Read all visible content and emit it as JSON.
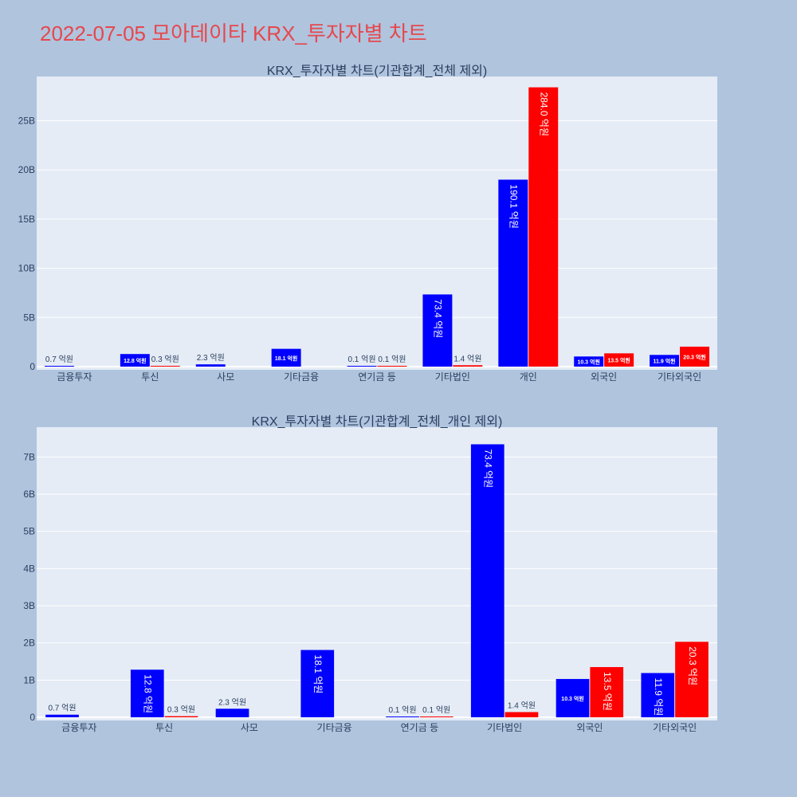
{
  "page": {
    "title": "2022-07-05 모아데이타 KRX_투자자별 차트",
    "background": "#b0c4de",
    "plot_background": "#e5ecf6",
    "title_color": "#e5484d"
  },
  "colors": {
    "buy": "#0000ff",
    "sell": "#ff0000"
  },
  "chart_data": [
    {
      "type": "bar",
      "title": "KRX_투자자별 차트(기관합계_전체 제외)",
      "categories": [
        "금융투자",
        "투신",
        "사모",
        "기타금융",
        "연기금 등",
        "기타법인",
        "개인",
        "외국인",
        "기타외국인"
      ],
      "series": [
        {
          "color": "#0000ff",
          "values": [
            70000000,
            1280000000,
            230000000,
            1810000000,
            10000000,
            7340000000,
            19010000000,
            1030000000,
            1190000000
          ],
          "labels": [
            "0.7 억원",
            "12.8 억원",
            "2.3 억원",
            "18.1 억원",
            "0.1 억원",
            "73.4 억원",
            "190.1 억원",
            "10.3 억원",
            "11.9 억원"
          ]
        },
        {
          "color": "#ff0000",
          "values": [
            0,
            30000000,
            0,
            0,
            10000000,
            140000000,
            28400000000,
            1350000000,
            2030000000
          ],
          "labels": [
            "",
            "0.3 억원",
            "",
            "",
            "0.1 억원",
            "1.4 억원",
            "284.0 억원",
            "13.5 억원",
            "20.3 억원"
          ]
        }
      ],
      "y_ticks": [
        "0",
        "5B",
        "10B",
        "15B",
        "20B",
        "25B"
      ],
      "ylim": [
        0,
        29500000000
      ],
      "grid": true
    },
    {
      "type": "bar",
      "title": "KRX_투자자별 차트(기관합계_전체_개인 제외)",
      "categories": [
        "금융투자",
        "투신",
        "사모",
        "기타금융",
        "연기금 등",
        "기타법인",
        "외국인",
        "기타외국인"
      ],
      "series": [
        {
          "color": "#0000ff",
          "values": [
            70000000,
            1280000000,
            230000000,
            1810000000,
            10000000,
            7340000000,
            1030000000,
            1190000000
          ],
          "labels": [
            "0.7 억원",
            "12.8 억원",
            "2.3 억원",
            "18.1 억원",
            "0.1 억원",
            "73.4 억원",
            "10.3 억원",
            "11.9 억원"
          ]
        },
        {
          "color": "#ff0000",
          "values": [
            0,
            30000000,
            0,
            0,
            10000000,
            140000000,
            1350000000,
            2030000000
          ],
          "labels": [
            "",
            "0.3 억원",
            "",
            "",
            "0.1 억원",
            "1.4 억원",
            "13.5 억원",
            "20.3 억원"
          ]
        }
      ],
      "y_ticks": [
        "0",
        "1B",
        "2B",
        "3B",
        "4B",
        "5B",
        "6B",
        "7B"
      ],
      "ylim": [
        0,
        7800000000
      ],
      "grid": true
    }
  ]
}
